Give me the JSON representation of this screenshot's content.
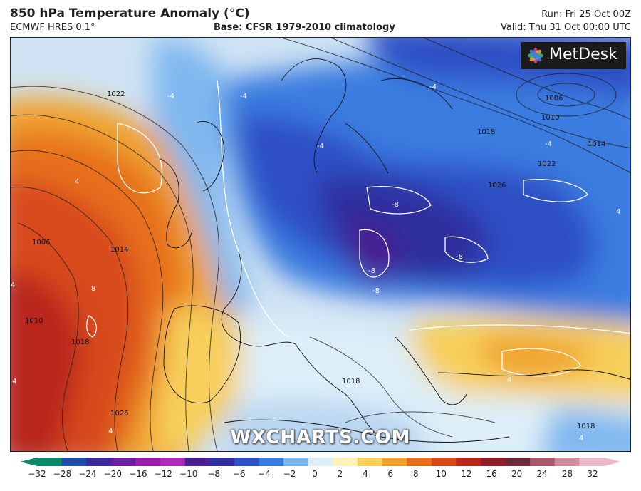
{
  "header": {
    "title": "850 hPa Temperature Anomaly (°C)",
    "model": "ECMWF HRES 0.1°",
    "base": "Base: CFSR 1979-2010 climatology",
    "run": "Run: Fri 25 Oct 00Z",
    "valid": "Valid: Thu 31 Oct 00:00 UTC"
  },
  "map": {
    "brand": "MetDesk",
    "watermark": "WXCHARTS.COM",
    "isobar_labels": [
      "1022",
      "1006",
      "1010",
      "1014",
      "1018",
      "1022",
      "1026",
      "1006",
      "1010",
      "1014",
      "1018",
      "1018",
      "1018",
      "1026"
    ],
    "anomaly_labels": [
      "-4",
      "-4",
      "-4",
      "-4",
      "-4",
      "-8",
      "-8",
      "-8",
      "-8",
      "4",
      "4",
      "4",
      "8",
      "4",
      "4",
      "4",
      "4"
    ]
  },
  "colorbar": {
    "ticks": [
      "−32",
      "−28",
      "−24",
      "−20",
      "−16",
      "−12",
      "−10",
      "−8",
      "−6",
      "−4",
      "−2",
      "0",
      "2",
      "4",
      "6",
      "8",
      "10",
      "12",
      "16",
      "20",
      "24",
      "28",
      "32"
    ],
    "colors": [
      "#0a8a6a",
      "#1f4ea8",
      "#3a2a9a",
      "#6a1fa0",
      "#9a1fa8",
      "#b02bb8",
      "#4a1f8f",
      "#2f2f9f",
      "#2f4fc4",
      "#3a7be0",
      "#7fb8ef",
      "#ddeef8",
      "#fff2b8",
      "#f7cf5a",
      "#f0a22e",
      "#e6701e",
      "#d84a1a",
      "#b8281f",
      "#8f1f2a",
      "#6a2a3a",
      "#a85a6a",
      "#d08fa0",
      "#eab8c8"
    ]
  }
}
